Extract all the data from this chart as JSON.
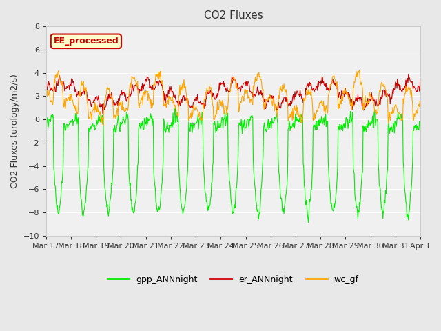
{
  "title": "CO2 Fluxes",
  "ylabel": "CO2 Fluxes (urology/m2/s)",
  "ylim": [
    -10,
    8
  ],
  "yticks": [
    -10,
    -8,
    -6,
    -4,
    -2,
    0,
    2,
    4,
    6,
    8
  ],
  "date_labels": [
    "Mar 17",
    "Mar 18",
    "Mar 19",
    "Mar 20",
    "Mar 21",
    "Mar 22",
    "Mar 23",
    "Mar 24",
    "Mar 25",
    "Mar 26",
    "Mar 27",
    "Mar 28",
    "Mar 29",
    "Mar 30",
    "Mar 31",
    "Apr 1"
  ],
  "label_box_text": "EE_processed",
  "label_box_facecolor": "#ffffcc",
  "label_box_edgecolor": "#cc0000",
  "line_colors": {
    "gpp": "#00ee00",
    "er": "#cc0000",
    "wc": "#ffa500"
  },
  "legend_labels": [
    "gpp_ANNnight",
    "er_ANNnight",
    "wc_gf"
  ],
  "background_color": "#e8e8e8",
  "plot_bg_color": "#f0f0f0",
  "n_points_per_day": 48,
  "n_days": 15
}
